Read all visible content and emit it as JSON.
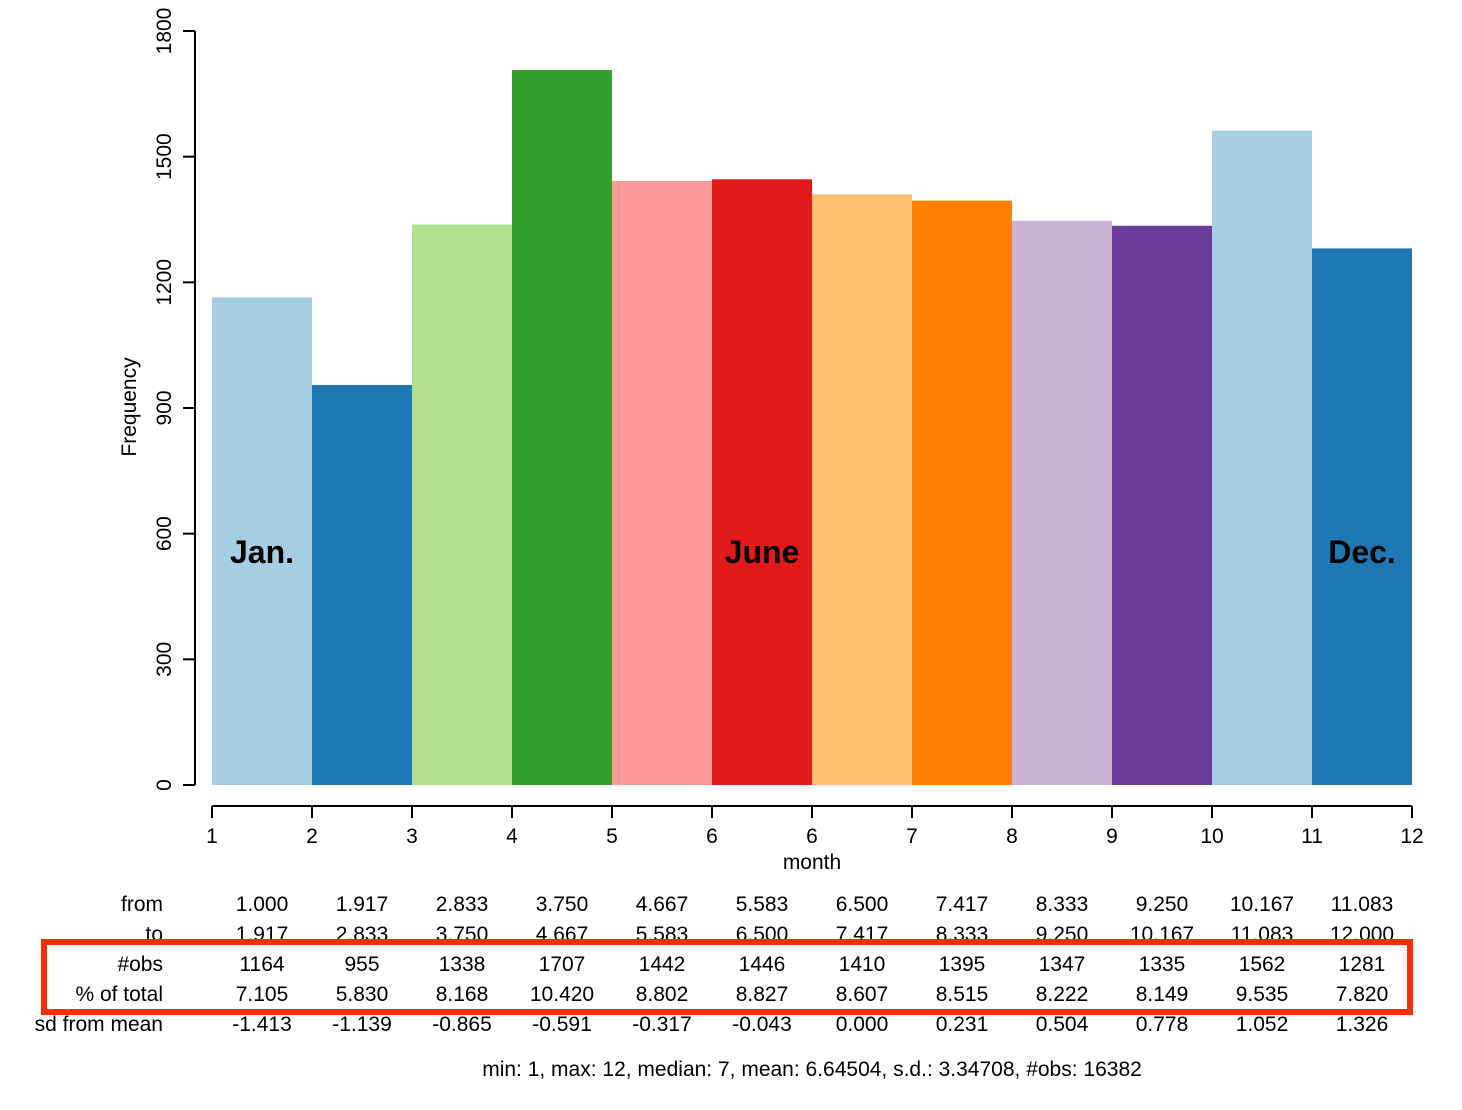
{
  "chart_data": {
    "type": "bar",
    "xlabel": "month",
    "ylabel": "Frequency",
    "ylim": [
      0,
      1800
    ],
    "yticks": [
      "0",
      "300",
      "600",
      "900",
      "1200",
      "1500",
      "1800"
    ],
    "xtick_labels": [
      "1",
      "2",
      "3",
      "4",
      "5",
      "6",
      "6",
      "7",
      "8",
      "9",
      "10",
      "11",
      "12"
    ],
    "grid": false,
    "legend": "none",
    "values": [
      1164,
      955,
      1338,
      1707,
      1442,
      1446,
      1410,
      1395,
      1347,
      1335,
      1562,
      1281
    ],
    "colors": [
      "#a6cee3",
      "#1f78b4",
      "#b2df8a",
      "#33a02c",
      "#fb9a99",
      "#e31a1c",
      "#fdbf6f",
      "#ff7f00",
      "#cab2d6",
      "#6a3d9a",
      "#a6cee3",
      "#1f78b4"
    ],
    "annotations": [
      {
        "text": "Jan.",
        "bar": 0
      },
      {
        "text": "June",
        "bar": 5
      },
      {
        "text": "Dec.",
        "bar": 11
      }
    ]
  },
  "table": {
    "rows": [
      {
        "label": "from",
        "values": [
          "1.000",
          "1.917",
          "2.833",
          "3.750",
          "4.667",
          "5.583",
          "6.500",
          "7.417",
          "8.333",
          "9.250",
          "10.167",
          "11.083"
        ]
      },
      {
        "label": "to",
        "values": [
          "1.917",
          "2.833",
          "3.750",
          "4.667",
          "5.583",
          "6.500",
          "7.417",
          "8.333",
          "9.250",
          "10.167",
          "11.083",
          "12.000"
        ]
      },
      {
        "label": "#obs",
        "values": [
          "1164",
          "955",
          "1338",
          "1707",
          "1442",
          "1446",
          "1410",
          "1395",
          "1347",
          "1335",
          "1562",
          "1281"
        ]
      },
      {
        "label": "% of total",
        "values": [
          "7.105",
          "5.830",
          "8.168",
          "10.420",
          "8.802",
          "8.827",
          "8.607",
          "8.515",
          "8.222",
          "8.149",
          "9.535",
          "7.820"
        ]
      },
      {
        "label": "sd from mean",
        "values": [
          "-1.413",
          "-1.139",
          "-0.865",
          "-0.591",
          "-0.317",
          "-0.043",
          "0.000",
          "0.231",
          "0.504",
          "0.778",
          "1.052",
          "1.326"
        ]
      }
    ],
    "highlight_color": "#ff2a00"
  },
  "summary": "min: 1, max: 12, median: 7, mean: 6.64504, s.d.: 3.34708, #obs: 16382"
}
